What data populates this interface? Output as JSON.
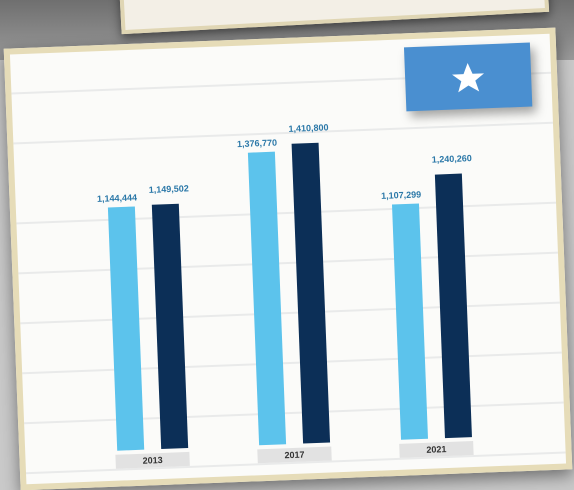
{
  "chart_data": {
    "type": "bar",
    "categories": [
      "2013",
      "2017",
      "2021"
    ],
    "series": [
      {
        "color": "#5cc3ec",
        "values": [
          1144444,
          1376770,
          1107299
        ],
        "value_labels": [
          "1,144,444",
          "1,376,770",
          "1,107,299"
        ]
      },
      {
        "color": "#0c2f57",
        "values": [
          1149502,
          1410800,
          1240260
        ],
        "value_labels": [
          "1,149,502",
          "1,410,800",
          "1,240,260"
        ]
      }
    ]
  }
}
